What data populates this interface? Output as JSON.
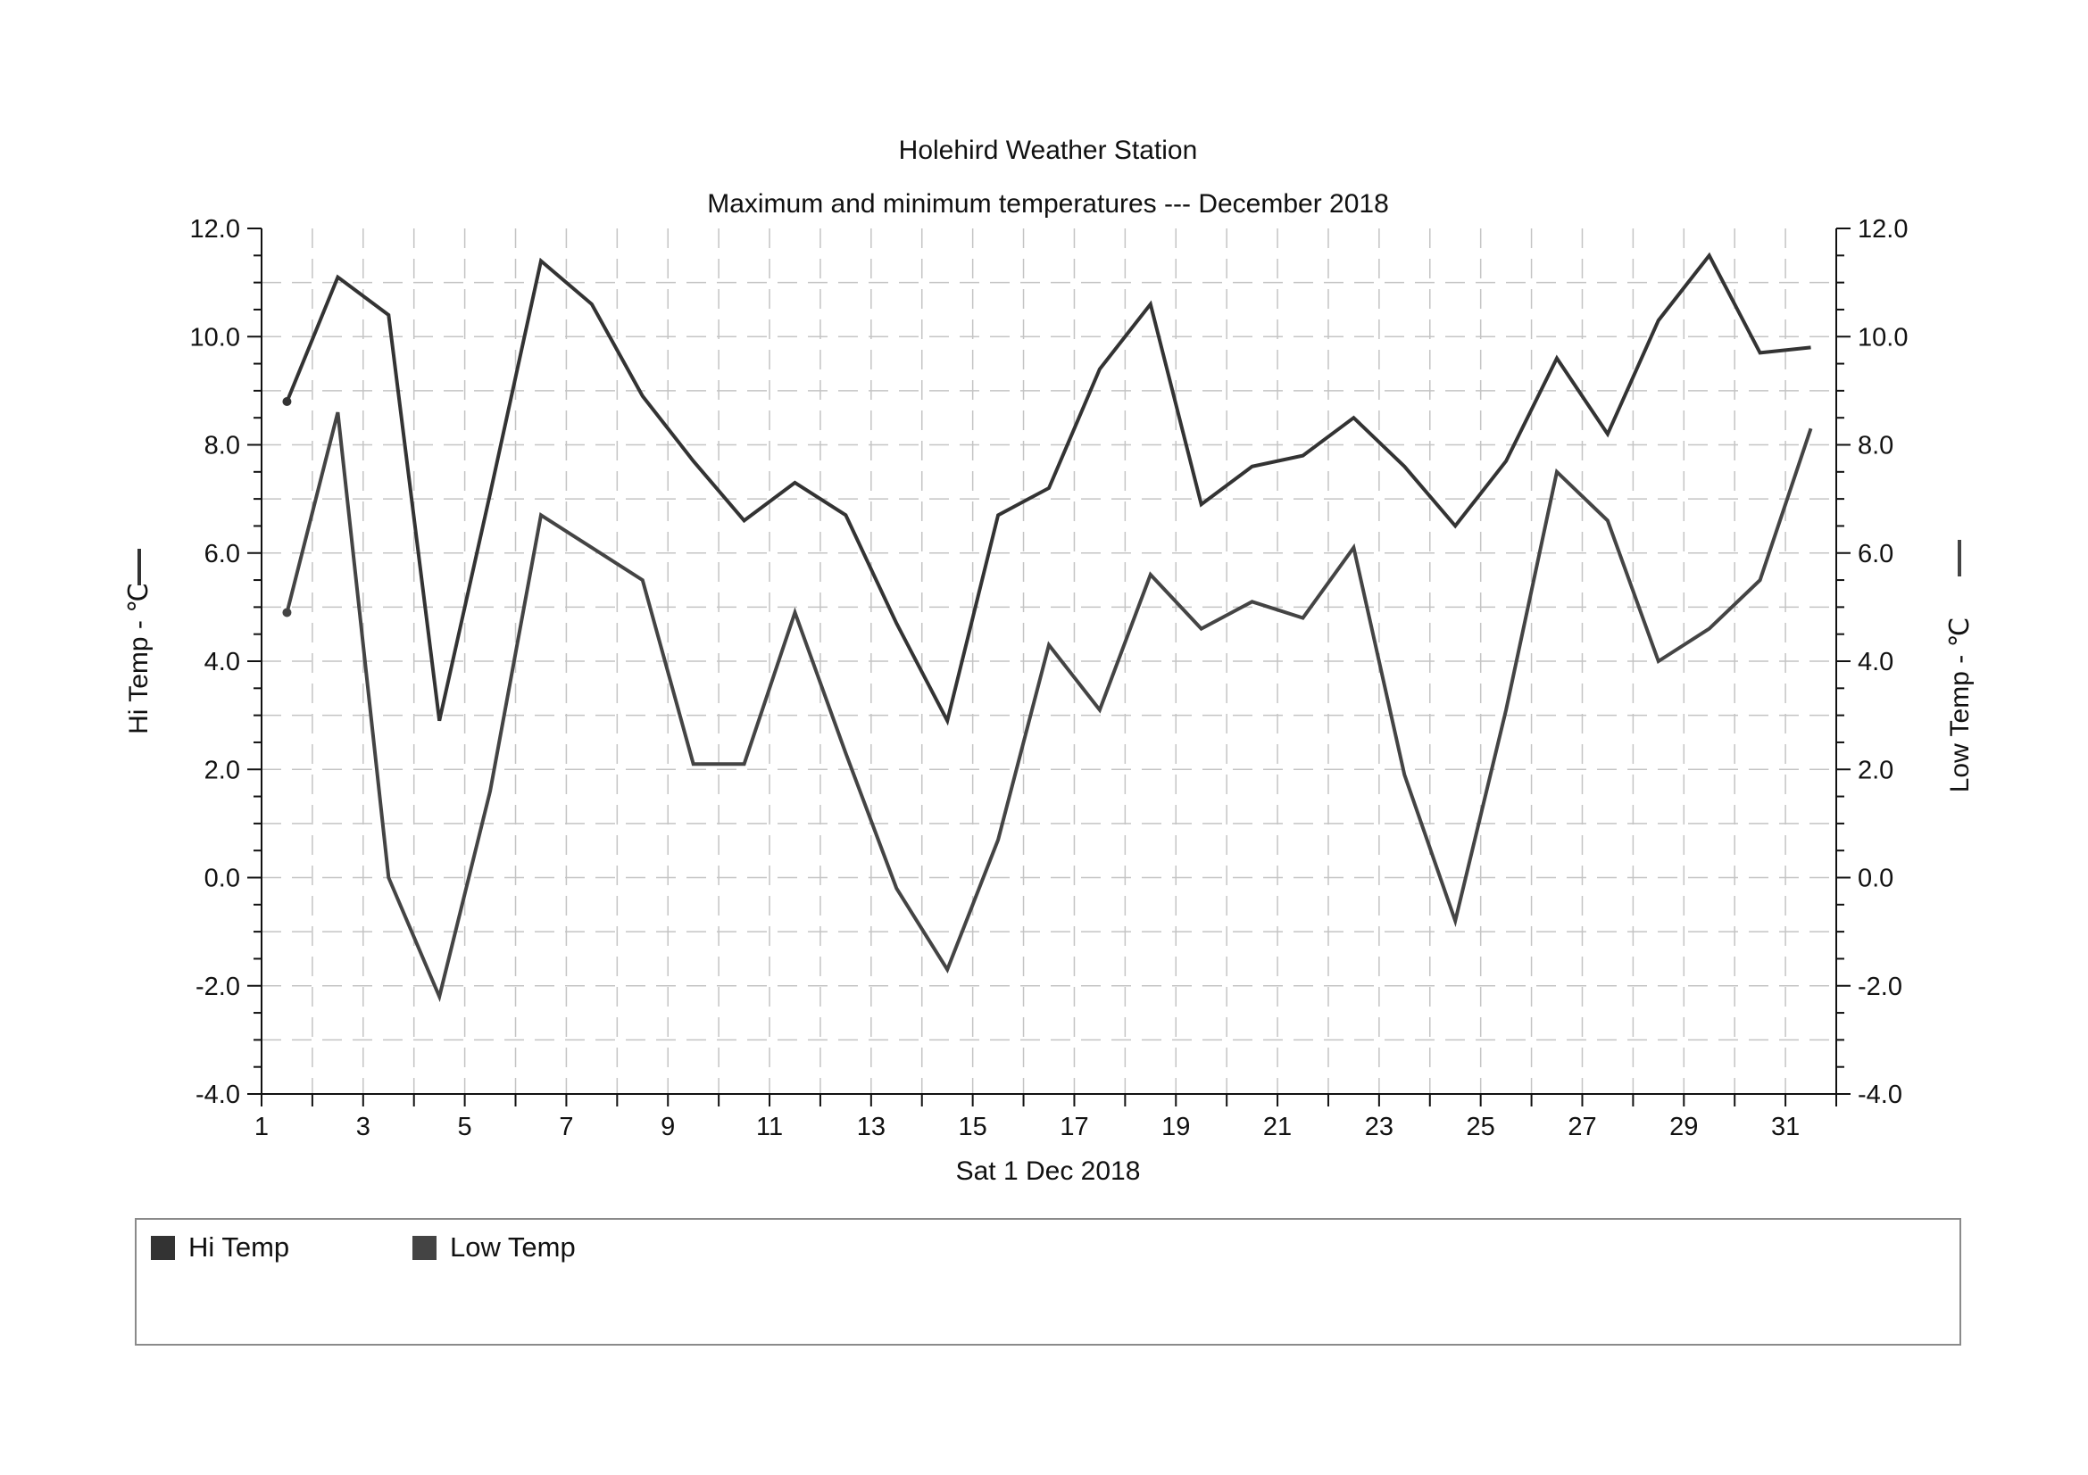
{
  "chart_data": {
    "type": "line",
    "title": "Holehird Weather Station",
    "subtitle": "Maximum and minimum temperatures --- December 2018",
    "xlabel": "Sat 1 Dec 2018",
    "ylabel_left": "Hi Temp - ℃",
    "ylabel_right": "Low Temp - ℃",
    "ylim": [
      -4.0,
      12.0
    ],
    "xlim": [
      1,
      32
    ],
    "y_ticks": [
      "12.0",
      "10.0",
      "8.0",
      "6.0",
      "4.0",
      "2.0",
      "0.0",
      "-2.0",
      "-4.0"
    ],
    "y_tick_values": [
      12,
      10,
      8,
      6,
      4,
      2,
      0,
      -2,
      -4
    ],
    "x_ticks": [
      "1",
      "3",
      "5",
      "7",
      "9",
      "11",
      "13",
      "15",
      "17",
      "19",
      "21",
      "23",
      "25",
      "27",
      "29",
      "31"
    ],
    "x_tick_values": [
      1,
      3,
      5,
      7,
      9,
      11,
      13,
      15,
      17,
      19,
      21,
      23,
      25,
      27,
      29,
      31
    ],
    "grid": true,
    "legend_position": "bottom",
    "x": [
      1.5,
      2.5,
      3.5,
      4.5,
      5.5,
      6.5,
      7.5,
      8.5,
      9.5,
      10.5,
      11.5,
      12.5,
      13.5,
      14.5,
      15.5,
      16.5,
      17.5,
      18.5,
      19.5,
      20.5,
      21.5,
      22.5,
      23.5,
      24.5,
      25.5,
      26.5,
      27.5,
      28.5,
      29.5,
      30.5,
      31.5
    ],
    "series": [
      {
        "name": "Hi Temp",
        "color": "#333333",
        "values": [
          8.8,
          11.1,
          10.4,
          2.9,
          7.1,
          11.4,
          10.6,
          8.9,
          7.7,
          6.6,
          7.3,
          6.7,
          4.7,
          2.9,
          6.7,
          7.2,
          9.4,
          10.6,
          6.9,
          7.6,
          7.8,
          8.5,
          7.6,
          6.5,
          7.7,
          9.6,
          8.2,
          10.3,
          11.5,
          9.7,
          9.8
        ]
      },
      {
        "name": "Low Temp",
        "color": "#444444",
        "values": [
          4.9,
          8.6,
          0.0,
          -2.2,
          1.6,
          6.7,
          6.1,
          5.5,
          2.1,
          2.1,
          4.9,
          2.3,
          -0.2,
          -1.7,
          0.7,
          4.3,
          3.1,
          5.6,
          4.6,
          5.1,
          4.8,
          6.1,
          1.9,
          -0.8,
          3.1,
          7.5,
          6.6,
          4.0,
          4.6,
          5.5,
          8.3
        ]
      }
    ]
  },
  "legend": {
    "items": [
      {
        "label": "Hi Temp",
        "color": "#333333"
      },
      {
        "label": "Low Temp",
        "color": "#444444"
      }
    ]
  }
}
